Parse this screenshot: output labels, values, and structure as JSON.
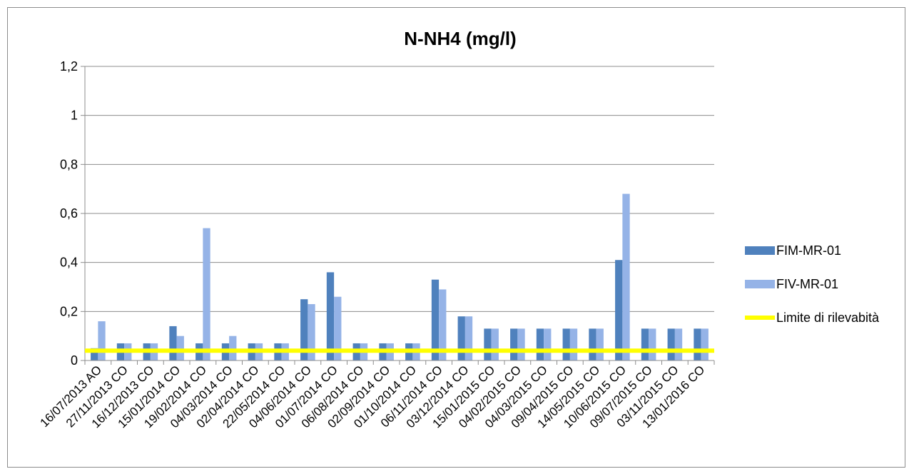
{
  "chart_data": {
    "type": "bar",
    "title": "N-NH4 (mg/l)",
    "xlabel": "",
    "ylabel": "",
    "ylim": [
      0,
      1.2
    ],
    "yticks": [
      "0",
      "0,2",
      "0,4",
      "0,6",
      "0,8",
      "1",
      "1,2"
    ],
    "grid": true,
    "legend_position": "right",
    "categories": [
      "16/07/2013 AO",
      "27/11/2013 CO",
      "16/12/2013 CO",
      "15/01/2014 CO",
      "19/02/2014 CO",
      "04/03/2014 CO",
      "02/04/2014 CO",
      "22/05/2014 CO",
      "04/06/2014 CO",
      "01/07/2014 CO",
      "06/08/2014 CO",
      "02/09/2014 CO",
      "01/10/2014 CO",
      "06/11/2014 CO",
      "03/12/2014 CO",
      "15/01/2015 CO",
      "04/02/2015 CO",
      "04/03/2015 CO",
      "09/04/2015 CO",
      "14/05/2015  CO",
      "10/06/2015  CO",
      "09/07/2015 CO",
      "03/11/2015 CO",
      "13/01/2016 CO"
    ],
    "series": [
      {
        "name": "FIM-MR-01",
        "color": "#4f81bd",
        "values": [
          0.05,
          0.07,
          0.07,
          0.14,
          0.07,
          0.07,
          0.07,
          0.07,
          0.25,
          0.36,
          0.07,
          0.07,
          0.07,
          0.33,
          0.18,
          0.13,
          0.13,
          0.13,
          0.13,
          0.13,
          0.41,
          0.13,
          0.13,
          0.13
        ]
      },
      {
        "name": "FIV-MR-01",
        "color": "#95b3e7",
        "values": [
          0.16,
          0.07,
          0.07,
          0.1,
          0.54,
          0.1,
          0.07,
          0.07,
          0.23,
          0.26,
          0.07,
          0.07,
          0.07,
          0.29,
          0.18,
          0.13,
          0.13,
          0.13,
          0.13,
          0.13,
          0.68,
          0.13,
          0.13,
          0.13
        ]
      }
    ],
    "threshold": {
      "name": "Limite di rilevabità",
      "value": 0.04,
      "color": "#ffff00"
    }
  }
}
